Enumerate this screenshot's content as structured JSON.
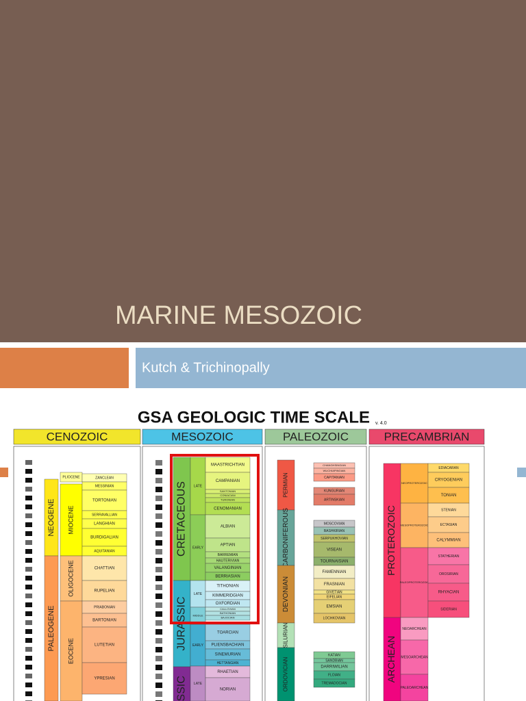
{
  "slide": {
    "title": "MARINE MESOZOIC",
    "subtitle": "Kutch & Trichinopally"
  },
  "figure": {
    "title": "GSA GEOLOGIC TIME SCALE",
    "version": "v. 4.0",
    "sections": [
      {
        "name": "CENOZOIC",
        "units": [
          "NEOGENE",
          "PALEOGENE",
          "PLIOCENE",
          "MIOCENE",
          "OLIGOCENE",
          "EOCENE",
          "ZANCLEAN",
          "MESSINIAN",
          "TORTONIAN",
          "SERRAVALLIAN",
          "LANGHIAN",
          "BURDIGALIAN",
          "AQUITANIAN",
          "CHATTIAN",
          "RUPELIAN",
          "PRIABONIAN",
          "BARTONIAN",
          "LUTETIAN",
          "YPRESIAN"
        ]
      },
      {
        "name": "MESOZOIC",
        "units": [
          "CRETACEOUS",
          "JURASSIC",
          "TRIASSIC",
          "LATE",
          "EARLY",
          "LATE",
          "MIDDLE",
          "EARLY",
          "LATE",
          "MAASTRICHTIAN",
          "CAMPANIAN",
          "SANTONIAN",
          "CONIACIAN",
          "TURONIAN",
          "CENOMANIAN",
          "ALBIAN",
          "APTIAN",
          "BARREMIAN",
          "HAUTERIVIAN",
          "VALANGINIAN",
          "BERRIASIAN",
          "TITHONIAN",
          "KIMMERIDGIAN",
          "OXFORDIAN",
          "CALLOVIAN",
          "BATHONIAN",
          "BAJOCIAN",
          "TOARCIAN",
          "PLIENSBACHIAN",
          "SINEMURIAN",
          "HETTANGIAN",
          "RHAETIAN",
          "NORIAN"
        ]
      },
      {
        "name": "PALEOZOIC",
        "units": [
          "PERMIAN",
          "CARBONIFEROUS",
          "DEVONIAN",
          "SILURIAN",
          "ORDOVICIAN",
          "CHANGHSINGIAN",
          "WUCHIAPINGIAN",
          "CAPITANIAN",
          "KUNGURIAN",
          "ARTINSKIAN",
          "MOSCOVIAN",
          "BASHKIRIAN",
          "SERPUKHOVIAN",
          "VISEAN",
          "TOURNAISIAN",
          "FAMENNIAN",
          "FRASNIAN",
          "GIVETIAN",
          "EIFELIAN",
          "EMSIAN",
          "LOCHKOVIAN",
          "KATIAN",
          "SANDBIAN",
          "DARRIWILIAN",
          "FLOIAN",
          "TREMADOCIAN"
        ]
      },
      {
        "name": "PRECAMBRIAN",
        "units": [
          "PROTEROZOIC",
          "ARCHEAN",
          "NEOPROTEROZOIC",
          "MESOPROTEROZOIC",
          "PALEOPROTEROZOIC",
          "NEOARCHEAN",
          "MESOARCHEAN",
          "PALEOARCHEAN",
          "EDIACARAN",
          "CRYOGENIAN",
          "TONIAN",
          "STENIAN",
          "ECTASIAN",
          "CALYMMIAN",
          "STATHERIAN",
          "OROSIRIAN",
          "RHYACIAN",
          "SIDERIAN"
        ]
      }
    ]
  }
}
